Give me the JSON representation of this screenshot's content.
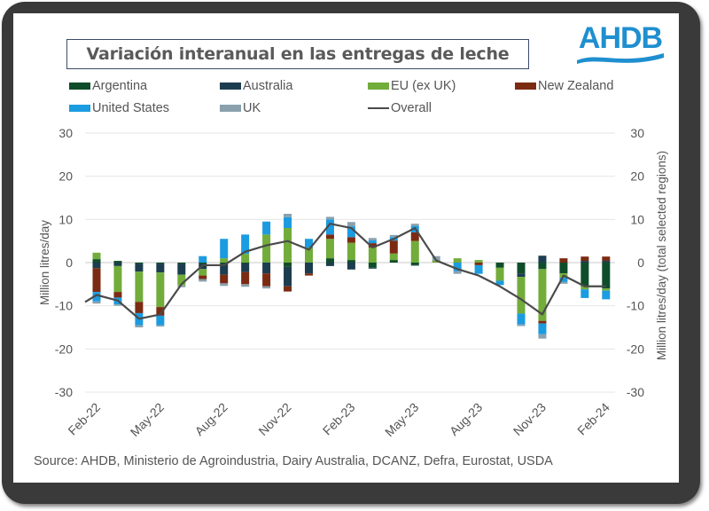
{
  "title": "Variación interanual en las entregas de leche",
  "logo": {
    "text": "AHDB",
    "color": "#1f8fd0"
  },
  "source": "Source: AHDB, Ministerio de Agroindustria, Dairy Australia, DCANZ, Defra, Eurostat, USDA",
  "legend": [
    {
      "name": "Argentina",
      "color": "#0f4d2a",
      "kind": "bar"
    },
    {
      "name": "Australia",
      "color": "#1c3d4f",
      "kind": "bar"
    },
    {
      "name": "EU (ex UK)",
      "color": "#72ac3a",
      "kind": "bar"
    },
    {
      "name": "New Zealand",
      "color": "#7b2b12",
      "kind": "bar"
    },
    {
      "name": "United States",
      "color": "#1b9be0",
      "kind": "bar"
    },
    {
      "name": "UK",
      "color": "#8aa1ad",
      "kind": "bar"
    },
    {
      "name": "Overall",
      "color": "#4a4a4a",
      "kind": "line"
    }
  ],
  "chart_data": {
    "type": "bar",
    "stacked": true,
    "title": "Variación interanual en las entregas de leche",
    "ylabel": "Million litres/day",
    "y2label": "Million litres/day (total selected regions)",
    "ylim": [
      -30,
      30
    ],
    "y2lim": [
      -30,
      30
    ],
    "yticks": [
      30,
      20,
      10,
      0,
      -10,
      -20,
      -30
    ],
    "grid": true,
    "legend_position": "top",
    "x": [
      "Feb-22",
      "Mar-22",
      "Apr-22",
      "May-22",
      "Jun-22",
      "Jul-22",
      "Aug-22",
      "Sep-22",
      "Oct-22",
      "Nov-22",
      "Dec-22",
      "Jan-23",
      "Feb-23",
      "Mar-23",
      "Apr-23",
      "May-23",
      "Jun-23",
      "Jul-23",
      "Aug-23",
      "Sep-23",
      "Oct-23",
      "Nov-23",
      "Dec-23",
      "Jan-24",
      "Feb-24"
    ],
    "xtick_labels": [
      "Feb-22",
      "May-22",
      "Aug-22",
      "Nov-22",
      "Feb-23",
      "May-23",
      "Aug-23",
      "Nov-23",
      "Feb-24"
    ],
    "series": [
      {
        "name": "Argentina",
        "values": [
          0.8,
          0.4,
          -0.3,
          -0.3,
          -0.3,
          -0.3,
          -0.3,
          -0.2,
          0.0,
          -1.0,
          0.0,
          1.0,
          0.6,
          -1.2,
          0.6,
          -0.6,
          0.0,
          0.0,
          0.0,
          -1.2,
          -2.5,
          -1.5,
          -2.5,
          -5.5,
          -6.0
        ]
      },
      {
        "name": "Australia",
        "values": [
          -1.3,
          -0.8,
          -1.8,
          -2.0,
          -2.5,
          -1.2,
          -2.5,
          -2.0,
          -2.5,
          -4.5,
          -2.5,
          -0.8,
          -1.6,
          -0.2,
          0.0,
          -0.1,
          0.0,
          0.0,
          0.0,
          0.0,
          -0.8,
          1.6,
          0.0,
          0.4,
          0.4
        ]
      },
      {
        "name": "EU (ex UK)",
        "values": [
          1.5,
          -6.0,
          -7.0,
          -8.0,
          -2.5,
          -1.5,
          1.0,
          2.0,
          6.5,
          8.0,
          3.5,
          4.5,
          4.0,
          3.5,
          1.5,
          5.0,
          0.5,
          1.0,
          0.6,
          -3.0,
          -8.5,
          -12.0,
          -1.0,
          -0.7,
          -0.5
        ]
      },
      {
        "name": "New Zealand",
        "values": [
          -5.5,
          -1.3,
          -2.6,
          -2.0,
          0.0,
          -0.8,
          -2.0,
          -2.8,
          -3.0,
          -1.2,
          -0.5,
          1.0,
          1.3,
          1.0,
          3.0,
          2.0,
          0.0,
          0.0,
          -0.6,
          0.0,
          0.0,
          -0.6,
          1.0,
          1.0,
          1.0
        ]
      },
      {
        "name": "United States",
        "values": [
          -2.2,
          -1.6,
          -2.8,
          -2.2,
          0.0,
          1.5,
          4.5,
          4.5,
          3.0,
          2.5,
          2.0,
          3.5,
          2.5,
          0.7,
          0.8,
          1.5,
          0.0,
          -2.0,
          -2.0,
          -1.0,
          -2.5,
          -2.5,
          -1.0,
          -2.0,
          -2.0
        ]
      },
      {
        "name": "UK",
        "values": [
          -0.5,
          -0.3,
          -0.5,
          -0.3,
          -0.4,
          -0.6,
          -0.6,
          -0.6,
          -0.5,
          0.8,
          0.0,
          0.6,
          1.0,
          0.5,
          0.5,
          0.5,
          1.0,
          -0.6,
          0.0,
          0.0,
          -0.4,
          -1.0,
          -0.4,
          0.0,
          0.0
        ]
      }
    ],
    "overall": {
      "name": "Overall",
      "x": [
        "Jan-22",
        "Feb-22",
        "Mar-22",
        "Apr-22",
        "May-22",
        "Jun-22",
        "Jul-22",
        "Aug-22",
        "Sep-22",
        "Oct-22",
        "Nov-22",
        "Dec-22",
        "Jan-23",
        "Feb-23",
        "Mar-23",
        "Apr-23",
        "May-23",
        "Jun-23",
        "Jul-23",
        "Aug-23",
        "Sep-23",
        "Oct-23",
        "Nov-23",
        "Dec-23",
        "Jan-24",
        "Feb-24"
      ],
      "values": [
        -10.5,
        -7.5,
        -8.8,
        -13.0,
        -12.0,
        -5.0,
        -0.6,
        -0.6,
        2.5,
        4.0,
        5.0,
        3.0,
        9.0,
        8.0,
        3.5,
        5.5,
        8.0,
        0.5,
        -1.5,
        -3.0,
        -5.5,
        -8.5,
        -12.0,
        -3.0,
        -5.5,
        -5.5
      ]
    }
  }
}
